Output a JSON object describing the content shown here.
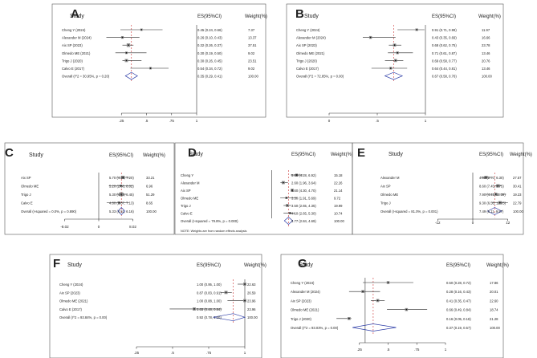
{
  "figure_title": "Forest plots panels A-G",
  "chart_data": [
    {
      "panel": "A",
      "type": "forest",
      "header": {
        "study": "Study",
        "es": "ES(95%CI)",
        "weight": "Weight(%)"
      },
      "xlim": [
        0,
        1
      ],
      "ticks": [
        {
          "value": 0.25,
          "label": ".25"
        },
        {
          "value": 0.5,
          "label": ".5"
        },
        {
          "value": 0.75,
          "label": ".75"
        },
        {
          "value": 1,
          "label": "1"
        }
      ],
      "null_line": 1,
      "studies": [
        {
          "label": "Cheng Y (2024)",
          "es": 0.45,
          "lo": 0.24,
          "hi": 0.66,
          "es_text": "0.45 (0.24, 0.66)",
          "weight": "7.37"
        },
        {
          "label": "Alexander M (2024)",
          "es": 0.26,
          "lo": 0.1,
          "hi": 0.43,
          "es_text": "0.26 (0.10, 0.43)",
          "weight": "13.37"
        },
        {
          "label": "Aix SP (2023)",
          "es": 0.32,
          "lo": 0.26,
          "hi": 0.37,
          "es_text": "0.32 (0.26, 0.37)",
          "weight": "37.51"
        },
        {
          "label": "Olmedo ME (2021)",
          "es": 0.3,
          "lo": 0.19,
          "hi": 0.5,
          "es_text": "0.30 (0.19, 0.50)",
          "weight": "9.02"
        },
        {
          "label": "Trigo J (2020)",
          "es": 0.3,
          "lo": 0.26,
          "hi": 0.45,
          "es_text": "0.30 (0.26, 0.45)",
          "weight": "23.51"
        },
        {
          "label": "Calvo E (2017)",
          "es": 0.54,
          "lo": 0.34,
          "hi": 0.72,
          "es_text": "0.54 (0.34, 0.72)",
          "weight": "9.02"
        }
      ],
      "overall": {
        "label": "Overall (I^2 = 30.95%, p = 0.20)",
        "es": 0.35,
        "lo": 0.29,
        "hi": 0.41,
        "es_text": "0.35 (0.29, 0.41)",
        "weight": "100.00"
      },
      "note": ""
    },
    {
      "panel": "B",
      "type": "forest",
      "header": {
        "study": "Study",
        "es": "ES(95%CI)",
        "weight": "Weight(%)"
      },
      "xlim": [
        0,
        1
      ],
      "ticks": [
        {
          "value": 0,
          "label": "0"
        },
        {
          "value": 0.5,
          "label": ".5"
        },
        {
          "value": 1,
          "label": "1"
        }
      ],
      "null_line": 1,
      "studies": [
        {
          "label": "Cheng Y (2024)",
          "es": 0.91,
          "lo": 0.71,
          "hi": 0.99,
          "es_text": "0.91 (0.71, 0.99)",
          "weight": "11.97"
        },
        {
          "label": "Alexander M (2024)",
          "es": 0.43,
          "lo": 0.35,
          "hi": 0.69,
          "es_text": "0.43 (0.35, 0.69)",
          "weight": "16.66"
        },
        {
          "label": "Aix SP (2023)",
          "es": 0.68,
          "lo": 0.62,
          "hi": 0.75,
          "es_text": "0.68 (0.62, 0.75)",
          "weight": "23.78"
        },
        {
          "label": "Olmedo ME (2021)",
          "es": 0.71,
          "lo": 0.61,
          "hi": 0.87,
          "es_text": "0.71 (0.61, 0.87)",
          "weight": "13.46"
        },
        {
          "label": "Trigo J (2020)",
          "es": 0.69,
          "lo": 0.58,
          "hi": 0.77,
          "es_text": "0.69 (0.58, 0.77)",
          "weight": "20.76"
        },
        {
          "label": "Calvo E (2017)",
          "es": 0.64,
          "lo": 0.44,
          "hi": 0.81,
          "es_text": "0.64 (0.44, 0.81)",
          "weight": "13.46"
        }
      ],
      "overall": {
        "label": "Overall (I^2 = 72.85%, p = 0.00)",
        "es": 0.67,
        "lo": 0.58,
        "hi": 0.76,
        "es_text": "0.67 (0.58, 0.76)",
        "weight": "100.00"
      },
      "note": ""
    },
    {
      "panel": "C",
      "type": "forest",
      "header": {
        "study": "Study",
        "es": "ES(95%CI)",
        "weight": "Weight(%)"
      },
      "xlim": [
        -10,
        10
      ],
      "ticks": [
        {
          "value": -8.02,
          "label": "-8.02"
        },
        {
          "value": 0,
          "label": "0"
        },
        {
          "value": 8.02,
          "label": "8.02"
        }
      ],
      "null_line": 0,
      "studies": [
        {
          "label": "Aix SP",
          "es": 5.7,
          "lo": 4.2,
          "hi": 7.2,
          "es_text": "5.70 (4.20, 7.20)",
          "weight": "33.21"
        },
        {
          "label": "Olmedo ME",
          "es": 5.2,
          "lo": 2.38,
          "hi": 8.02,
          "es_text": "5.20 (2.38, 8.02)",
          "weight": "6.96"
        },
        {
          "label": "Trigo J",
          "es": 5.3,
          "lo": 4.15,
          "hi": 6.45,
          "es_text": "5.30 (4.15, 6.45)",
          "weight": "51.29"
        },
        {
          "label": "Calvo E",
          "es": 4.8,
          "lo": 1.87,
          "hi": 7.13,
          "es_text": "4.80 (1.87, 7.13)",
          "weight": "8.65"
        }
      ],
      "overall": {
        "label": "Overall  (I-squared = 0.0%, p = 0.890)",
        "es": 5.33,
        "lo": 4.51,
        "hi": 6.16,
        "es_text": "5.33 (4.51, 6.16)",
        "weight": "100.00"
      },
      "note": ""
    },
    {
      "panel": "D",
      "type": "forest",
      "header": {
        "study": "Study",
        "es": "ES(95%CI)",
        "weight": "Weight(%)"
      },
      "xlim": [
        -10,
        10
      ],
      "ticks": [],
      "null_line": 0,
      "studies": [
        {
          "label": "Cheng Y",
          "es": 5.6,
          "lo": 4.28,
          "hi": 6.92,
          "es_text": "5.60 (4.28, 6.92)",
          "weight": "15.18"
        },
        {
          "label": "Alexander M",
          "es": 2.6,
          "lo": 1.96,
          "hi": 3.64,
          "es_text": "2.60 (1.96, 3.64)",
          "weight": "22.26"
        },
        {
          "label": "Aix SP",
          "es": 4.6,
          "lo": 4.3,
          "hi": 4.7,
          "es_text": "4.60 (4.30, 4.70)",
          "weight": "21.14"
        },
        {
          "label": "Olmedo ME",
          "es": 3.3,
          "lo": 1.91,
          "hi": 5.69,
          "es_text": "3.30 (1.91, 5.69)",
          "weight": "9.72"
        },
        {
          "label": "Trigo J",
          "es": 3.5,
          "lo": 2.65,
          "hi": 4.35,
          "es_text": "3.50 (2.65, 4.35)",
          "weight": "19.99"
        },
        {
          "label": "Calvo E",
          "es": 4.1,
          "lo": 2.65,
          "hi": 5.3,
          "es_text": "4.10 (2.65, 5.30)",
          "weight": "10.74"
        }
      ],
      "overall": {
        "label": "Overall  (I-squared = 79.8%, p = 0.000)",
        "es": 3.77,
        "lo": 2.84,
        "hi": 4.69,
        "es_text": "3.77 (2.84, 4.69)",
        "weight": "100.00"
      },
      "note": "NOTE: Weights are from random effects analysis"
    },
    {
      "panel": "E",
      "type": "forest",
      "header": {
        "study": "Study",
        "es": "ES(95%CI)",
        "weight": "Weight(%)"
      },
      "xlim": [
        -14,
        14
      ],
      "ticks": [
        {
          "value": -12,
          "label": "-12"
        },
        {
          "value": 0,
          "label": "0"
        },
        {
          "value": 12,
          "label": "12"
        }
      ],
      "null_line": 0,
      "studies": [
        {
          "label": "Alexander M",
          "es": 4.5,
          "lo": 2.7,
          "hi": 6.3,
          "es_text": "4.50 (2.70, 6.30)",
          "weight": "27.57"
        },
        {
          "label": "Aix SP",
          "es": 8.6,
          "lo": 7.45,
          "hi": 9.75,
          "es_text": "8.60 (7.45, 9.75)",
          "weight": "30.41"
        },
        {
          "label": "Olmedo ME",
          "es": 7.9,
          "lo": 4.41,
          "hi": 11.39,
          "es_text": "7.90 (4.41, 11.39)",
          "weight": "19.23"
        },
        {
          "label": "Trigo J",
          "es": 9.3,
          "lo": 6.55,
          "hi": 12.05,
          "es_text": "9.30 (6.55, 12.05)",
          "weight": "22.79"
        }
      ],
      "overall": {
        "label": "Overall  (I-squared = 81.0%, p = 0.001)",
        "es": 7.49,
        "lo": 5.11,
        "hi": 9.87,
        "es_text": "7.49 (5.11, 9.87)",
        "weight": "100.00"
      },
      "note": ""
    },
    {
      "panel": "F",
      "type": "forest",
      "header": {
        "study": "Study",
        "es": "ES(95%CI)",
        "weight": "Weight(%)"
      },
      "xlim": [
        0,
        1
      ],
      "ticks": [
        {
          "value": 0.25,
          "label": ".25"
        },
        {
          "value": 0.5,
          "label": ".5"
        },
        {
          "value": 0.75,
          "label": ".75"
        },
        {
          "value": 1,
          "label": "1"
        }
      ],
      "null_line": 1,
      "studies": [
        {
          "label": "Cheng Y (2024)",
          "es": 1.0,
          "lo": 0.95,
          "hi": 1.0,
          "es_text": "1.00 (0.95, 1.00)",
          "weight": "22.63"
        },
        {
          "label": "Aix SP (2023)",
          "es": 0.87,
          "lo": 0.83,
          "hi": 0.91,
          "es_text": "0.87 (0.83, 0.91)",
          "weight": "26.59"
        },
        {
          "label": "Olmedo ME (2021)",
          "es": 1.0,
          "lo": 0.88,
          "hi": 1.0,
          "es_text": "1.00 (0.88, 1.00)",
          "weight": "23.96"
        },
        {
          "label": "Calvo E (2017)",
          "es": 0.65,
          "lo": 0.48,
          "hi": 0.84,
          "es_text": "0.65 (0.48, 0.84)",
          "weight": "23.96"
        }
      ],
      "overall": {
        "label": "Overall (I^2 = 93.84%, p = 0.00)",
        "es": 0.92,
        "lo": 0.78,
        "hi": 1.0,
        "es_text": "0.92 (0.78, 1.00)",
        "weight": "100.00"
      },
      "note": ""
    },
    {
      "panel": "G",
      "type": "forest",
      "header": {
        "study": "Study",
        "es": "ES(95%CI)",
        "weight": "Weight(%)"
      },
      "xlim": [
        0,
        1
      ],
      "ticks": [
        {
          "value": 0.25,
          "label": ".25"
        },
        {
          "value": 0.5,
          "label": ".5"
        },
        {
          "value": 0.75,
          "label": ".75"
        },
        {
          "value": 1,
          "label": "1"
        }
      ],
      "null_line": 0.3,
      "studies": [
        {
          "label": "Cheng Y (2024)",
          "es": 0.5,
          "lo": 0.28,
          "hi": 0.72,
          "es_text": "0.50 (0.28, 0.72)",
          "weight": "17.86"
        },
        {
          "label": "Alexander M (2024)",
          "es": 0.28,
          "lo": 0.16,
          "hi": 0.43,
          "es_text": "0.28 (0.16, 0.43)",
          "weight": "20.01"
        },
        {
          "label": "Aix SP (2023)",
          "es": 0.41,
          "lo": 0.35,
          "hi": 0.47,
          "es_text": "0.41 (0.35, 0.47)",
          "weight": "22.60"
        },
        {
          "label": "Olmedo ME (2021)",
          "es": 0.66,
          "lo": 0.49,
          "hi": 0.84,
          "es_text": "0.66 (0.49, 0.84)",
          "weight": "18.74"
        },
        {
          "label": "Trigo J (2020)",
          "es": 0.16,
          "lo": 0.05,
          "hi": 0.18,
          "es_text": "0.16 (0.05, 0.18)",
          "weight": "21.28"
        }
      ],
      "overall": {
        "label": "Overall (I^2 = 93.03%, p = 0.00)",
        "es": 0.37,
        "lo": 0.19,
        "hi": 0.57,
        "es_text": "0.37 (0.19, 0.57)",
        "weight": "100.00"
      },
      "note": ""
    }
  ]
}
